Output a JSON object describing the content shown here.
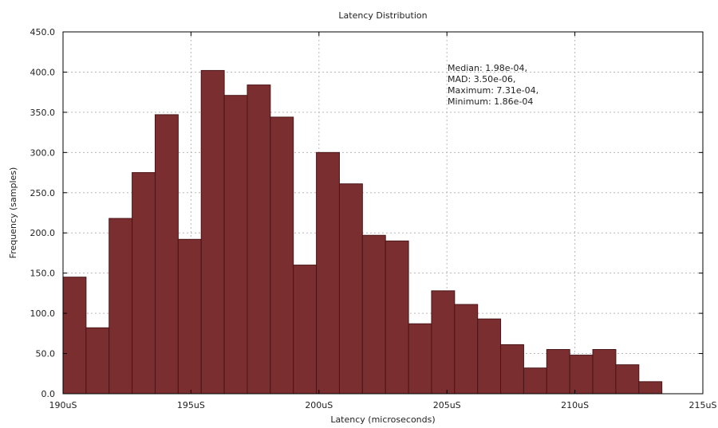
{
  "chart_data": {
    "type": "bar",
    "title": "Latency Distribution",
    "xlabel": "Latency (microseconds)",
    "ylabel": "Frequency (samples)",
    "xlim": [
      190,
      215
    ],
    "ylim": [
      0,
      450
    ],
    "x_ticks": [
      {
        "value": 190,
        "label": "190uS"
      },
      {
        "value": 195,
        "label": "195uS"
      },
      {
        "value": 200,
        "label": "200uS"
      },
      {
        "value": 205,
        "label": "205uS"
      },
      {
        "value": 210,
        "label": "210uS"
      },
      {
        "value": 215,
        "label": "215uS"
      }
    ],
    "y_ticks": [
      {
        "value": 0,
        "label": "0.0"
      },
      {
        "value": 50,
        "label": "50.0"
      },
      {
        "value": 100,
        "label": "100.0"
      },
      {
        "value": 150,
        "label": "150.0"
      },
      {
        "value": 200,
        "label": "200.0"
      },
      {
        "value": 250,
        "label": "250.0"
      },
      {
        "value": 300,
        "label": "300.0"
      },
      {
        "value": 350,
        "label": "350.0"
      },
      {
        "value": 400,
        "label": "400.0"
      },
      {
        "value": 450,
        "label": "450.0"
      }
    ],
    "bin_width": 0.9,
    "bins": [
      {
        "x0": 190.0,
        "value": 145
      },
      {
        "x0": 190.9,
        "value": 82
      },
      {
        "x0": 191.8,
        "value": 218
      },
      {
        "x0": 192.7,
        "value": 275
      },
      {
        "x0": 193.6,
        "value": 347
      },
      {
        "x0": 194.5,
        "value": 192
      },
      {
        "x0": 195.4,
        "value": 402
      },
      {
        "x0": 196.3,
        "value": 371
      },
      {
        "x0": 197.2,
        "value": 384
      },
      {
        "x0": 198.1,
        "value": 344
      },
      {
        "x0": 199.0,
        "value": 160
      },
      {
        "x0": 199.9,
        "value": 300
      },
      {
        "x0": 200.8,
        "value": 261
      },
      {
        "x0": 201.7,
        "value": 197
      },
      {
        "x0": 202.6,
        "value": 190
      },
      {
        "x0": 203.5,
        "value": 87
      },
      {
        "x0": 204.4,
        "value": 128
      },
      {
        "x0": 205.3,
        "value": 111
      },
      {
        "x0": 206.2,
        "value": 93
      },
      {
        "x0": 207.1,
        "value": 61
      },
      {
        "x0": 208.0,
        "value": 32
      },
      {
        "x0": 208.9,
        "value": 55
      },
      {
        "x0": 209.8,
        "value": 48
      },
      {
        "x0": 210.7,
        "value": 55
      },
      {
        "x0": 211.6,
        "value": 36
      },
      {
        "x0": 212.5,
        "value": 15
      }
    ],
    "grid": true,
    "bar_color": "#7b2e30",
    "bar_edge_color": "#4a1416",
    "annotation_lines": [
      "Median: 1.98e-04,",
      "MAD: 3.50e-06,",
      "Maximum: 7.31e-04,",
      "Minimum: 1.86e-04"
    ]
  }
}
